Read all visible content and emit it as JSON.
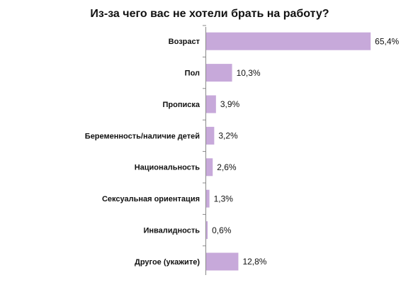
{
  "chart_data": {
    "type": "bar",
    "orientation": "horizontal",
    "title": "Из-за чего вас не хотели брать на работу?",
    "categories": [
      "Возраст",
      "Пол",
      "Прописка",
      "Беременность/наличие детей",
      "Национальность",
      "Сексуальная ориентация",
      "Инвалидность",
      "Другое (укажите)"
    ],
    "values": [
      65.4,
      10.3,
      3.9,
      3.2,
      2.6,
      1.3,
      0.6,
      12.8
    ],
    "value_labels": [
      "65,4%",
      "10,3%",
      "3,9%",
      "3,2%",
      "2,6%",
      "1,3%",
      "0,6%",
      "12,8%"
    ],
    "color": "#c7a9da"
  }
}
